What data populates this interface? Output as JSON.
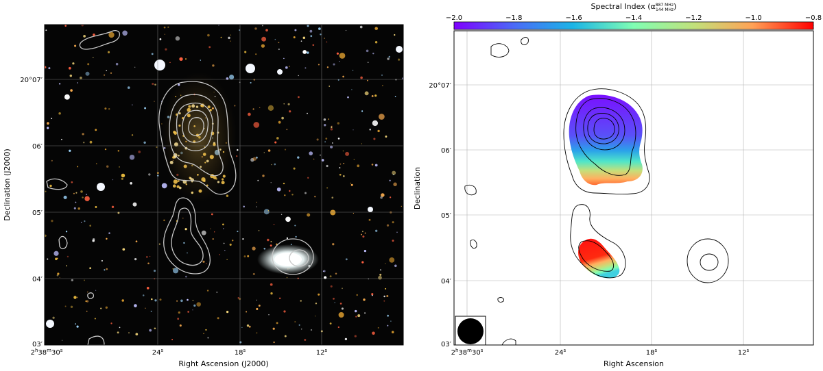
{
  "left_panel": {
    "xlabel": "Right Ascension (J2000)",
    "ylabel": "Declination (J2000)",
    "ra_ticks": [
      {
        "label_h": "2",
        "sup_h": "h",
        "label_m": "38",
        "sup_m": "m",
        "label_s": "30",
        "sup_s": "s",
        "ra_s": 30
      },
      {
        "label_s": "24",
        "sup_s": "s",
        "ra_s": 24
      },
      {
        "label_s": "18",
        "sup_s": "s",
        "ra_s": 18
      },
      {
        "label_s": "12",
        "sup_s": "s",
        "ra_s": 12
      }
    ],
    "dec_ticks": [
      {
        "label": "20°07′",
        "dec_min": 7
      },
      {
        "label": "06′",
        "dec_min": 6
      },
      {
        "label": "05′",
        "dec_min": 5
      },
      {
        "label": "04′",
        "dec_min": 4
      },
      {
        "label": "03′",
        "dec_min": 3
      }
    ]
  },
  "right_panel": {
    "xlabel": "Right Ascension",
    "ylabel": "Declination",
    "colorbar": {
      "title": "Spectral Index (α",
      "title_sup": "887 MHz",
      "title_sub": "144 MHz",
      "title_end": ")",
      "min": -2.0,
      "max": -0.8,
      "ticks": [
        "−2.0",
        "−1.8",
        "−1.6",
        "−1.4",
        "−1.2",
        "−1.0",
        "−0.8"
      ],
      "colormap": "rainbow"
    },
    "ra_ticks": [
      {
        "label_h": "2",
        "sup_h": "h",
        "label_m": "38",
        "sup_m": "m",
        "label_s": "30",
        "sup_s": "s",
        "ra_s": 30
      },
      {
        "label_s": "24",
        "sup_s": "s",
        "ra_s": 24
      },
      {
        "label_s": "18",
        "sup_s": "s",
        "ra_s": 18
      },
      {
        "label_s": "12",
        "sup_s": "s",
        "ra_s": 12
      }
    ],
    "dec_ticks": [
      {
        "label": "20°07′",
        "dec_min": 7
      },
      {
        "label": "06′",
        "dec_min": 6
      },
      {
        "label": "05′",
        "dec_min": 5
      },
      {
        "label": "04′",
        "dec_min": 4
      },
      {
        "label": "03′",
        "dec_min": 3
      }
    ],
    "beam": "circular"
  },
  "colors": {
    "optical_background": "#050505",
    "contour_left": "#c8c8c8",
    "contour_right": "#000000",
    "grid_left": "#8a8a8a",
    "grid_right": "#b0b0b0"
  }
}
